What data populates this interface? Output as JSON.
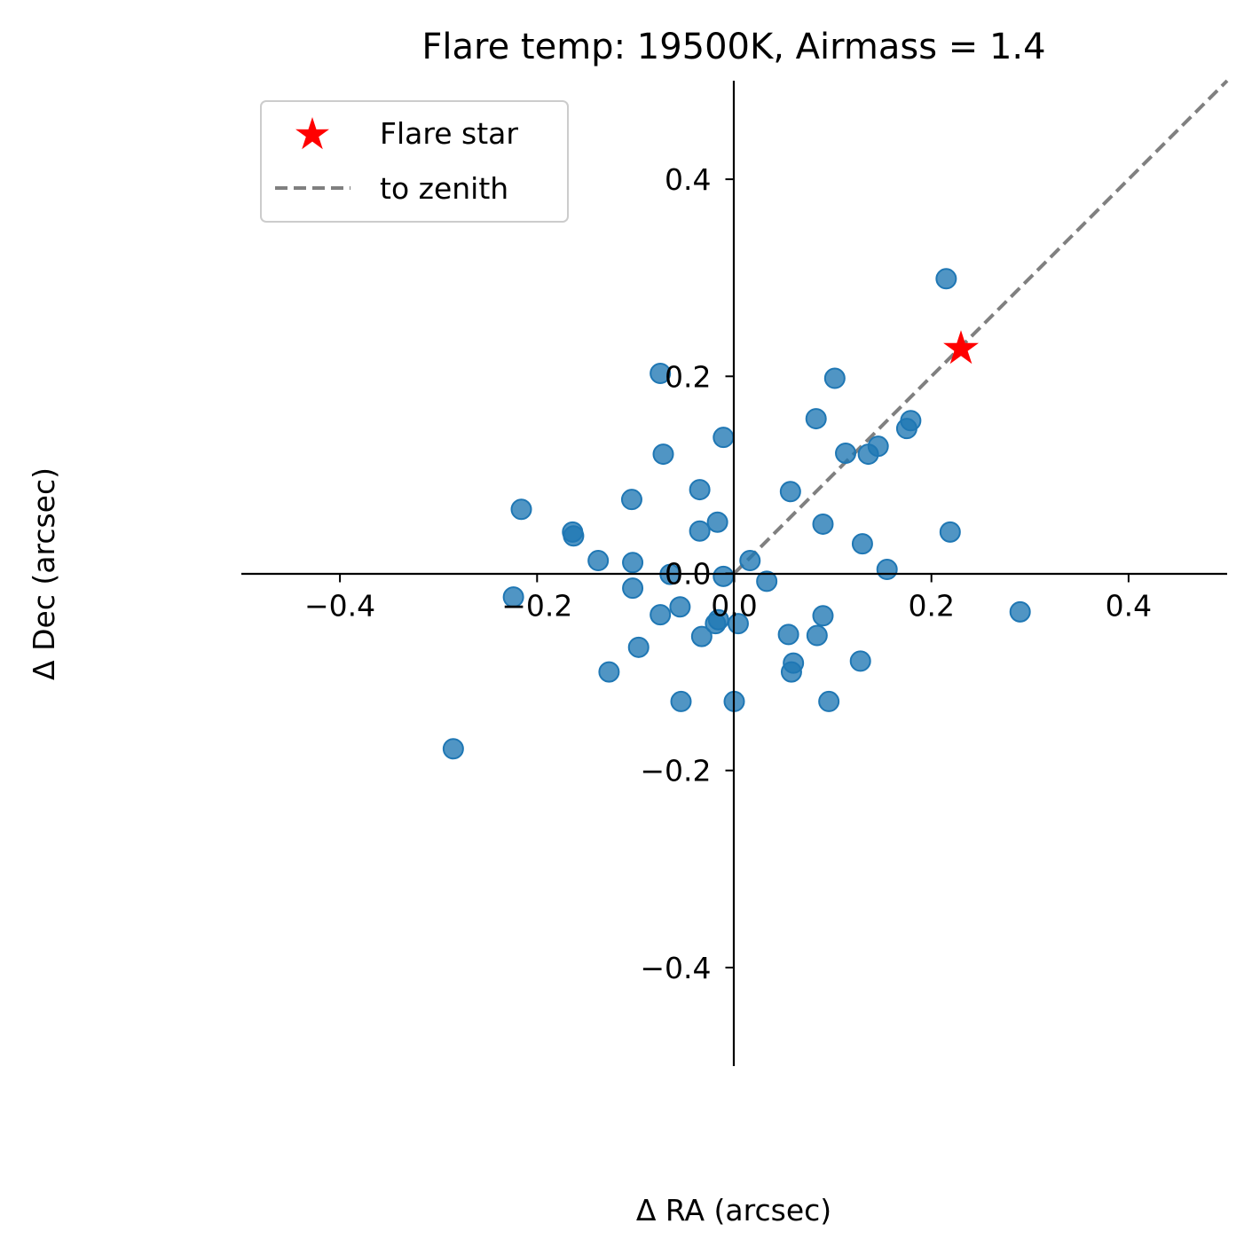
{
  "chart_data": {
    "type": "scatter",
    "title": "Flare temp: 19500K, Airmass = 1.4",
    "xlabel": "Δ RA (arcsec)",
    "ylabel": "Δ Dec (arcsec)",
    "xlim": [
      -0.5,
      0.5
    ],
    "ylim": [
      -0.5,
      0.5
    ],
    "xticks": [
      -0.4,
      -0.2,
      0.0,
      0.2,
      0.4
    ],
    "yticks": [
      -0.4,
      -0.2,
      0.0,
      0.2,
      0.4
    ],
    "xtick_labels": [
      "−0.4",
      "−0.2",
      "0.0",
      "0.2",
      "0.4"
    ],
    "ytick_labels": [
      "−0.4",
      "−0.2",
      "0.0",
      "0.2",
      "0.4"
    ],
    "grid": false,
    "legend_position": "top-left",
    "colors": {
      "stars": "#1f77b4",
      "flare": "#ff0000",
      "zenith": "#808080"
    },
    "flare_star": {
      "name": "Flare star",
      "x": 0.23,
      "y": 0.228
    },
    "zenith_line": {
      "name": "to zenith",
      "x": [
        0.0,
        0.5
      ],
      "y": [
        0.0,
        0.5
      ]
    },
    "points": [
      {
        "x": 0.215,
        "y": 0.299
      },
      {
        "x": -0.075,
        "y": 0.203
      },
      {
        "x": 0.102,
        "y": 0.198
      },
      {
        "x": 0.083,
        "y": 0.157
      },
      {
        "x": 0.179,
        "y": 0.155
      },
      {
        "x": 0.175,
        "y": 0.147
      },
      {
        "x": -0.011,
        "y": 0.138
      },
      {
        "x": 0.146,
        "y": 0.129
      },
      {
        "x": -0.072,
        "y": 0.121
      },
      {
        "x": 0.113,
        "y": 0.122
      },
      {
        "x": 0.136,
        "y": 0.121
      },
      {
        "x": -0.035,
        "y": 0.085
      },
      {
        "x": 0.057,
        "y": 0.083
      },
      {
        "x": -0.104,
        "y": 0.075
      },
      {
        "x": -0.216,
        "y": 0.065
      },
      {
        "x": -0.017,
        "y": 0.052
      },
      {
        "x": 0.09,
        "y": 0.05
      },
      {
        "x": -0.164,
        "y": 0.042
      },
      {
        "x": -0.163,
        "y": 0.038
      },
      {
        "x": -0.035,
        "y": 0.043
      },
      {
        "x": 0.219,
        "y": 0.042
      },
      {
        "x": 0.13,
        "y": 0.03
      },
      {
        "x": -0.138,
        "y": 0.013
      },
      {
        "x": -0.103,
        "y": 0.011
      },
      {
        "x": 0.016,
        "y": 0.013
      },
      {
        "x": 0.155,
        "y": 0.004
      },
      {
        "x": -0.065,
        "y": -0.001
      },
      {
        "x": -0.011,
        "y": -0.003
      },
      {
        "x": 0.033,
        "y": -0.008
      },
      {
        "x": -0.103,
        "y": -0.015
      },
      {
        "x": -0.224,
        "y": -0.024
      },
      {
        "x": -0.055,
        "y": -0.034
      },
      {
        "x": -0.075,
        "y": -0.042
      },
      {
        "x": 0.29,
        "y": -0.039
      },
      {
        "x": 0.09,
        "y": -0.043
      },
      {
        "x": -0.016,
        "y": -0.047
      },
      {
        "x": -0.019,
        "y": -0.051
      },
      {
        "x": 0.004,
        "y": -0.051
      },
      {
        "x": -0.033,
        "y": -0.064
      },
      {
        "x": 0.055,
        "y": -0.062
      },
      {
        "x": 0.084,
        "y": -0.063
      },
      {
        "x": -0.097,
        "y": -0.075
      },
      {
        "x": 0.128,
        "y": -0.089
      },
      {
        "x": 0.06,
        "y": -0.091
      },
      {
        "x": -0.127,
        "y": -0.1
      },
      {
        "x": 0.058,
        "y": -0.1
      },
      {
        "x": -0.054,
        "y": -0.13
      },
      {
        "x": 0.0,
        "y": -0.13
      },
      {
        "x": 0.096,
        "y": -0.13
      },
      {
        "x": -0.285,
        "y": -0.178
      }
    ]
  }
}
